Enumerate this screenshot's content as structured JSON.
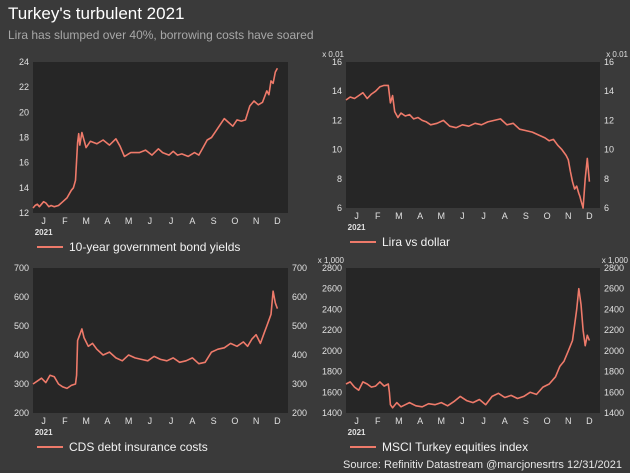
{
  "header": {
    "title": "Turkey's turbulent 2021",
    "subtitle": "Lira has slumped over 40%, borrowing costs have soared"
  },
  "source": "Source: Refinitiv Datastream @marcjonesrtrs 12/31/2021",
  "colors": {
    "background": "#3a3a3a",
    "plot_bg": "#262626",
    "line": "#ee7a6a"
  },
  "chart_data": [
    {
      "type": "line",
      "legend": "10-year government bond yields",
      "year_label": "2021",
      "months": [
        "J",
        "F",
        "M",
        "A",
        "M",
        "J",
        "J",
        "A",
        "S",
        "O",
        "N",
        "D"
      ],
      "ylim": [
        12,
        24
      ],
      "yticks": [
        12,
        14,
        16,
        18,
        20,
        22,
        24
      ],
      "right_axis": false,
      "multiplier": "",
      "x": [
        0,
        0.1,
        0.2,
        0.3,
        0.4,
        0.5,
        0.6,
        0.75,
        0.85,
        1.0,
        1.2,
        1.4,
        1.6,
        1.8,
        1.9,
        2.0,
        2.1,
        2.15,
        2.2,
        2.3,
        2.4,
        2.5,
        2.7,
        3.0,
        3.3,
        3.6,
        3.9,
        4.1,
        4.3,
        4.6,
        5.0,
        5.3,
        5.6,
        5.9,
        6.1,
        6.4,
        6.6,
        6.8,
        7.0,
        7.3,
        7.6,
        7.8,
        8.0,
        8.2,
        8.4,
        8.6,
        8.8,
        9.0,
        9.2,
        9.4,
        9.6,
        9.8,
        10.0,
        10.2,
        10.4,
        10.6,
        10.8,
        11.0,
        11.1,
        11.2,
        11.3,
        11.4,
        11.5
      ],
      "values": [
        12.4,
        12.6,
        12.7,
        12.5,
        12.7,
        12.9,
        12.8,
        12.5,
        12.6,
        12.5,
        12.6,
        12.9,
        13.2,
        13.8,
        14.0,
        14.6,
        17.6,
        18.3,
        17.4,
        18.4,
        17.8,
        17.2,
        17.7,
        17.5,
        17.8,
        17.4,
        17.9,
        17.3,
        16.5,
        16.8,
        16.8,
        17.0,
        16.6,
        17.1,
        16.8,
        16.6,
        16.9,
        16.6,
        16.7,
        16.5,
        16.8,
        16.6,
        17.2,
        17.8,
        18.0,
        18.5,
        19.0,
        19.5,
        19.2,
        18.9,
        19.4,
        19.3,
        19.4,
        20.5,
        20.9,
        20.6,
        20.8,
        21.7,
        21.4,
        22.5,
        22.3,
        23.2,
        23.5
      ]
    },
    {
      "type": "line",
      "legend": "Lira vs dollar",
      "year_label": "2021",
      "months": [
        "J",
        "F",
        "M",
        "A",
        "M",
        "J",
        "J",
        "A",
        "S",
        "O",
        "N",
        "D"
      ],
      "ylim": [
        6,
        16
      ],
      "yticks": [
        6,
        8,
        10,
        12,
        14,
        16
      ],
      "right_axis": true,
      "multiplier": "x 0.01",
      "x": [
        0,
        0.2,
        0.4,
        0.6,
        0.8,
        1.0,
        1.2,
        1.4,
        1.6,
        1.8,
        2.0,
        2.1,
        2.2,
        2.3,
        2.45,
        2.6,
        2.8,
        3.0,
        3.2,
        3.4,
        3.6,
        3.8,
        4.0,
        4.3,
        4.6,
        4.9,
        5.2,
        5.5,
        5.8,
        6.1,
        6.4,
        6.7,
        7.0,
        7.3,
        7.6,
        7.9,
        8.2,
        8.5,
        8.8,
        9.1,
        9.4,
        9.6,
        9.8,
        10.0,
        10.2,
        10.4,
        10.5,
        10.6,
        10.7,
        10.8,
        10.9,
        11.0,
        11.05,
        11.1,
        11.2,
        11.3,
        11.4,
        11.5
      ],
      "values": [
        13.4,
        13.6,
        13.5,
        13.7,
        13.9,
        13.5,
        13.8,
        14.0,
        14.3,
        14.4,
        14.4,
        13.2,
        13.7,
        12.6,
        12.2,
        12.5,
        12.3,
        12.4,
        12.1,
        12.2,
        12.0,
        11.9,
        11.7,
        11.8,
        12.0,
        11.6,
        11.5,
        11.7,
        11.6,
        11.8,
        11.7,
        11.9,
        12.0,
        12.1,
        11.7,
        11.8,
        11.4,
        11.3,
        11.2,
        11.0,
        10.8,
        10.6,
        10.7,
        10.3,
        10.0,
        9.6,
        9.3,
        8.5,
        7.8,
        7.3,
        7.5,
        7.0,
        6.8,
        6.5,
        6.0,
        8.0,
        9.4,
        7.8
      ]
    },
    {
      "type": "line",
      "legend": "CDS debt insurance costs",
      "year_label": "2021",
      "months": [
        "J",
        "F",
        "M",
        "A",
        "M",
        "J",
        "J",
        "A",
        "S",
        "O",
        "N",
        "D"
      ],
      "ylim": [
        200,
        700
      ],
      "yticks": [
        200,
        300,
        400,
        500,
        600,
        700
      ],
      "right_axis": true,
      "multiplier": "",
      "x": [
        0,
        0.2,
        0.4,
        0.6,
        0.8,
        1.0,
        1.2,
        1.4,
        1.6,
        1.8,
        2.0,
        2.05,
        2.1,
        2.2,
        2.3,
        2.4,
        2.6,
        2.8,
        3.0,
        3.3,
        3.6,
        3.9,
        4.2,
        4.5,
        4.8,
        5.1,
        5.4,
        5.7,
        6.0,
        6.3,
        6.6,
        6.9,
        7.2,
        7.5,
        7.8,
        8.1,
        8.4,
        8.7,
        9.0,
        9.3,
        9.6,
        9.9,
        10.1,
        10.3,
        10.5,
        10.7,
        10.9,
        11.0,
        11.1,
        11.2,
        11.3,
        11.4,
        11.5
      ],
      "values": [
        300,
        310,
        320,
        305,
        330,
        325,
        300,
        290,
        285,
        295,
        300,
        330,
        450,
        470,
        490,
        460,
        430,
        440,
        420,
        400,
        410,
        390,
        380,
        400,
        390,
        385,
        380,
        395,
        385,
        380,
        390,
        375,
        380,
        390,
        370,
        375,
        410,
        420,
        425,
        440,
        430,
        445,
        430,
        455,
        470,
        440,
        480,
        500,
        520,
        540,
        620,
        580,
        560
      ]
    },
    {
      "type": "line",
      "legend": "MSCI Turkey equities index",
      "year_label": "2021",
      "months": [
        "J",
        "F",
        "M",
        "A",
        "M",
        "J",
        "J",
        "A",
        "S",
        "O",
        "N",
        "D"
      ],
      "ylim": [
        1400,
        2800
      ],
      "yticks": [
        1400,
        1600,
        1800,
        2000,
        2200,
        2400,
        2600,
        2800
      ],
      "right_axis": true,
      "multiplier": "x 1,000",
      "x": [
        0,
        0.2,
        0.4,
        0.6,
        0.8,
        1.0,
        1.2,
        1.4,
        1.6,
        1.8,
        2.0,
        2.05,
        2.1,
        2.2,
        2.4,
        2.6,
        2.8,
        3.0,
        3.3,
        3.6,
        3.9,
        4.2,
        4.5,
        4.8,
        5.1,
        5.4,
        5.7,
        6.0,
        6.3,
        6.6,
        6.9,
        7.2,
        7.5,
        7.8,
        8.1,
        8.4,
        8.7,
        9.0,
        9.3,
        9.6,
        9.9,
        10.1,
        10.3,
        10.5,
        10.7,
        10.8,
        10.9,
        11.0,
        11.1,
        11.2,
        11.3,
        11.4,
        11.5
      ],
      "values": [
        1680,
        1700,
        1650,
        1620,
        1700,
        1680,
        1650,
        1660,
        1700,
        1660,
        1680,
        1600,
        1480,
        1450,
        1500,
        1460,
        1480,
        1500,
        1470,
        1460,
        1490,
        1480,
        1500,
        1470,
        1510,
        1560,
        1520,
        1500,
        1530,
        1480,
        1560,
        1590,
        1550,
        1570,
        1540,
        1560,
        1600,
        1580,
        1650,
        1680,
        1750,
        1850,
        1900,
        2000,
        2100,
        2250,
        2400,
        2600,
        2450,
        2200,
        2050,
        2150,
        2100
      ]
    }
  ]
}
